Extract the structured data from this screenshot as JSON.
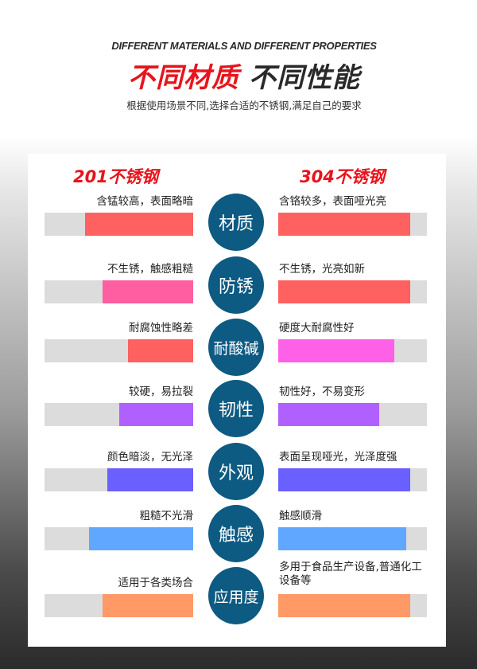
{
  "header": {
    "en_title": "DIFFERENT MATERIALS AND DIFFERENT PROPERTIES",
    "cn_title_red": "不同材质",
    "cn_title_dark": "不同性能",
    "subtitle": "根据使用场景不同,选择合适的不锈钢,满足自己的要求"
  },
  "columns": {
    "left": "201不锈钢",
    "right": "304不锈钢"
  },
  "colors": {
    "title_red": "#e8141b",
    "circle": "#0d5a82",
    "track": "#dcdcdc"
  },
  "rows": [
    {
      "category": "材质",
      "left_text": "含锰较高，表面略暗",
      "left_level": 0.73,
      "left_color": "#ff6060",
      "right_text": "含铬较多，表面哑光亮",
      "right_level": 0.89,
      "right_color": "#ff6060"
    },
    {
      "category": "防锈",
      "left_text": "不生锈，触感粗糙",
      "left_level": 0.61,
      "left_color": "#ff5fa0",
      "right_text": "不生锈，光亮如新",
      "right_level": 0.89,
      "right_color": "#ff6060"
    },
    {
      "category": "耐酸碱",
      "left_text": "耐腐蚀性略差",
      "left_level": 0.44,
      "left_color": "#ff6060",
      "right_text": "硬度大耐腐性好",
      "right_level": 0.78,
      "right_color": "#ff60e8"
    },
    {
      "category": "韧性",
      "left_text": "较硬，易拉裂",
      "left_level": 0.5,
      "left_color": "#b060ff",
      "right_text": "韧性好，不易变形",
      "right_level": 0.68,
      "right_color": "#b060ff"
    },
    {
      "category": "外观",
      "left_text": "颜色暗淡，无光泽",
      "left_level": 0.58,
      "left_color": "#6a60ff",
      "right_text": "表面呈现哑光，光泽度强",
      "right_level": 0.89,
      "right_color": "#6a60ff"
    },
    {
      "category": "触感",
      "left_text": "粗糙不光滑",
      "left_level": 0.7,
      "left_color": "#60a8ff",
      "right_text": "触感顺滑",
      "right_level": 0.86,
      "right_color": "#60a8ff"
    },
    {
      "category": "应用度",
      "left_text": "适用于各类场合",
      "left_level": 0.61,
      "left_color": "#ff9966",
      "right_text": "多用于食品生产设备,普通化工设备等",
      "right_level": 0.89,
      "right_color": "#ff9966"
    }
  ]
}
